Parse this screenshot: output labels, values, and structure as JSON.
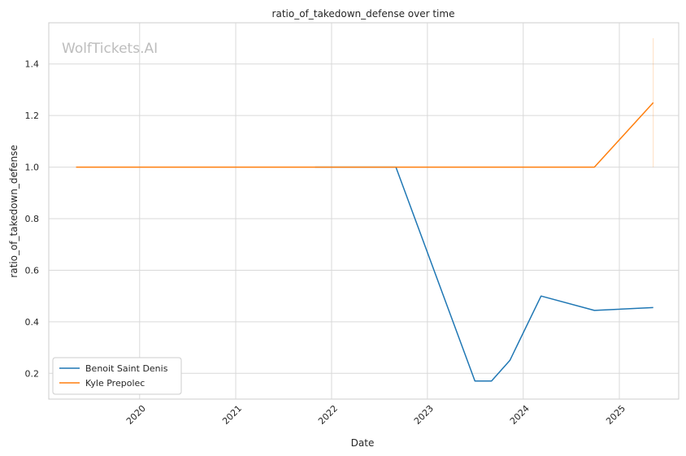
{
  "chart_data": {
    "type": "line",
    "title": "ratio_of_takedown_defense over time",
    "xlabel": "Date",
    "ylabel": "ratio_of_takedown_defense",
    "watermark": "WolfTickets.AI",
    "x_ticks": [
      "2020",
      "2021",
      "2022",
      "2023",
      "2024",
      "2025"
    ],
    "y_ticks": [
      "0.2",
      "0.4",
      "0.6",
      "0.8",
      "1.0",
      "1.2",
      "1.4"
    ],
    "xlim": [
      "2019-01-20",
      "2025-08-15"
    ],
    "ylim": [
      0.1,
      1.56
    ],
    "grid": true,
    "legend_position": "lower-left",
    "series": [
      {
        "name": "Benoit Saint Denis",
        "color": "#1f77b4",
        "points": [
          {
            "x": "2021-10-30",
            "y": 1.0
          },
          {
            "x": "2022-09-03",
            "y": 1.0
          },
          {
            "x": "2023-07-01",
            "y": 0.17
          },
          {
            "x": "2023-09-02",
            "y": 0.17
          },
          {
            "x": "2023-11-11",
            "y": 0.25
          },
          {
            "x": "2024-03-09",
            "y": 0.5
          },
          {
            "x": "2024-09-28",
            "y": 0.444
          },
          {
            "x": "2025-05-10",
            "y": 0.455
          }
        ]
      },
      {
        "name": "Kyle Prepolec",
        "color": "#ff7f0e",
        "points": [
          {
            "x": "2019-05-04",
            "y": 1.0
          },
          {
            "x": "2024-09-28",
            "y": 1.0
          },
          {
            "x": "2025-05-10",
            "y": 1.25
          }
        ]
      }
    ],
    "vertical_marker": {
      "x": "2025-05-10",
      "y_range": [
        1.0,
        1.5
      ],
      "color": "#ff7f0e"
    }
  }
}
